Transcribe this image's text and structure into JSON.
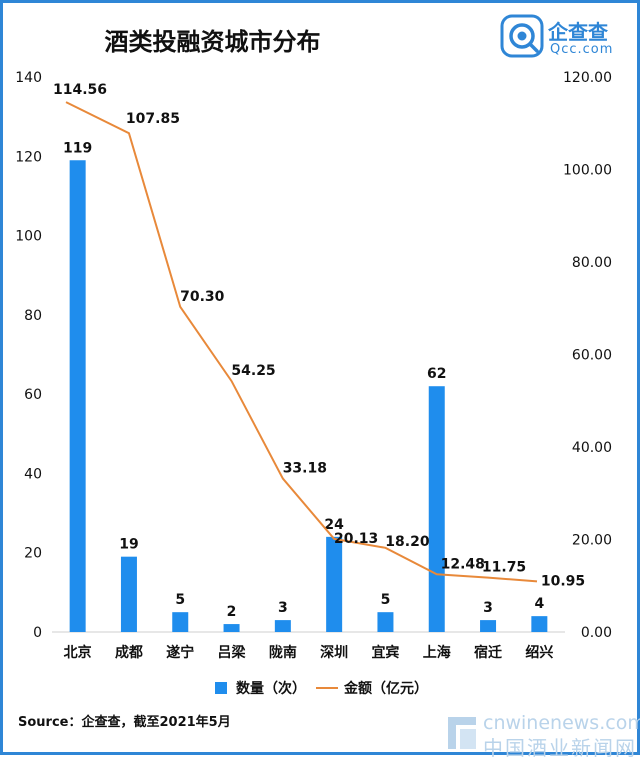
{
  "header": {
    "title": "酒类投融资城市分布",
    "logo_name": "企查查",
    "logo_domain": "Qcc.com"
  },
  "footer": {
    "source": "Source：企查查，截至2021年5月",
    "site_domain": "cnwinenews.com",
    "site_name": "中国酒业新闻网"
  },
  "colors": {
    "bar": "#1f8ded",
    "line": "#e8893a",
    "accent": "#2f86d6"
  },
  "chart_data": {
    "type": "bar",
    "categories": [
      "北京",
      "成都",
      "遂宁",
      "吕梁",
      "陇南",
      "深圳",
      "宜宾",
      "上海",
      "宿迁",
      "绍兴"
    ],
    "series": [
      {
        "name": "数量（次）",
        "type": "bar",
        "axis": "left",
        "values": [
          119,
          19,
          5,
          2,
          3,
          24,
          5,
          62,
          3,
          4
        ],
        "labels": [
          "119",
          "19",
          "5",
          "2",
          "3",
          "24",
          "5",
          "62",
          "3",
          "4"
        ]
      },
      {
        "name": "金额（亿元）",
        "type": "line",
        "axis": "right",
        "values": [
          114.56,
          107.85,
          70.3,
          54.25,
          33.18,
          20.13,
          18.2,
          12.48,
          11.75,
          10.95
        ],
        "labels": [
          "114.56",
          "107.85",
          "70.30",
          "54.25",
          "33.18",
          "20.13",
          "18.20",
          "12.48",
          "11.75",
          "10.95"
        ]
      }
    ],
    "y_left": {
      "min": 0,
      "max": 140,
      "ticks": [
        "0",
        "20",
        "40",
        "60",
        "80",
        "100",
        "120",
        "140"
      ]
    },
    "y_right": {
      "min": 0,
      "max": 120,
      "ticks": [
        "0.00",
        "20.00",
        "40.00",
        "60.00",
        "80.00",
        "100.00",
        "120.00"
      ]
    },
    "legend": "bottom",
    "grid": false
  }
}
